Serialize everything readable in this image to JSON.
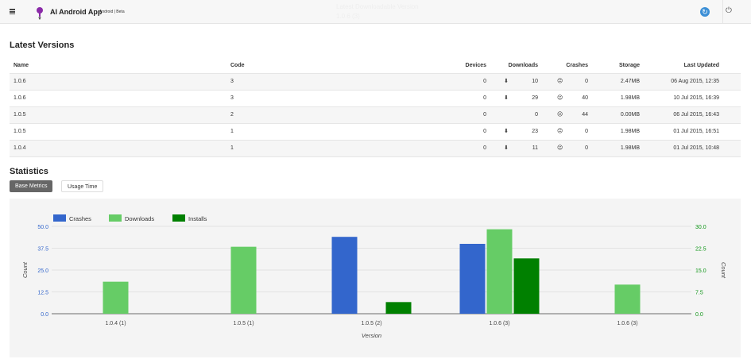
{
  "topbar": {
    "app_name": "AI Android App",
    "app_tag": "Android | Beta",
    "latest_label": "Latest Downloadable Version",
    "latest_value": "1.0.6 (3)"
  },
  "versions": {
    "title": "Latest Versions",
    "headers": [
      "Name",
      "Code",
      "Devices",
      "Downloads",
      "Crashes",
      "Storage",
      "Last Updated"
    ],
    "rows": [
      {
        "name": "1.0.6",
        "code": "3",
        "devices": "0",
        "downloads": "10",
        "crashes": "0",
        "storage": "2.47MB",
        "updated": "06 Aug 2015, 12:35",
        "dl_icon": true
      },
      {
        "name": "1.0.6",
        "code": "3",
        "devices": "0",
        "downloads": "29",
        "crashes": "40",
        "storage": "1.98MB",
        "updated": "10 Jul 2015, 16:39",
        "dl_icon": true
      },
      {
        "name": "1.0.5",
        "code": "2",
        "devices": "0",
        "downloads": "0",
        "crashes": "44",
        "storage": "0.00MB",
        "updated": "06 Jul 2015, 16:43",
        "dl_icon": false
      },
      {
        "name": "1.0.5",
        "code": "1",
        "devices": "0",
        "downloads": "23",
        "crashes": "0",
        "storage": "1.98MB",
        "updated": "01 Jul 2015, 16:51",
        "dl_icon": true
      },
      {
        "name": "1.0.4",
        "code": "1",
        "devices": "0",
        "downloads": "11",
        "crashes": "0",
        "storage": "1.98MB",
        "updated": "01 Jul 2015, 10:48",
        "dl_icon": true
      }
    ]
  },
  "statistics": {
    "title": "Statistics",
    "tabs": [
      "Base Metrics",
      "Usage Time"
    ],
    "active_tab": "Base Metrics"
  },
  "chart_data": {
    "type": "bar",
    "categories": [
      "1.0.4 (1)",
      "1.0.5 (1)",
      "1.0.5 (2)",
      "1.0.6 (3)",
      "1.0.6 (3)"
    ],
    "series": [
      {
        "name": "Crashes",
        "axis": "left",
        "color": "#3366cc",
        "values": [
          0,
          0,
          44,
          40,
          0
        ]
      },
      {
        "name": "Downloads",
        "axis": "right",
        "color": "#66cc66",
        "values": [
          11,
          23,
          0,
          29,
          10
        ]
      },
      {
        "name": "Installs",
        "axis": "right",
        "color": "#008000",
        "values": [
          0,
          0,
          4,
          19,
          0
        ]
      }
    ],
    "xlabel": "Version",
    "ylabel_left": "Count",
    "ylabel_right": "Count",
    "ylim_left": [
      0,
      50
    ],
    "yticks_left": [
      "0.0",
      "12.5",
      "25.0",
      "37.5",
      "50.0"
    ],
    "ylim_right": [
      0,
      30
    ],
    "yticks_right": [
      "0.0",
      "7.5",
      "15.0",
      "22.5",
      "30.0"
    ],
    "left_axis_color": "#3366cc",
    "right_axis_color": "#109618",
    "grid": true,
    "legend": "top-left"
  }
}
